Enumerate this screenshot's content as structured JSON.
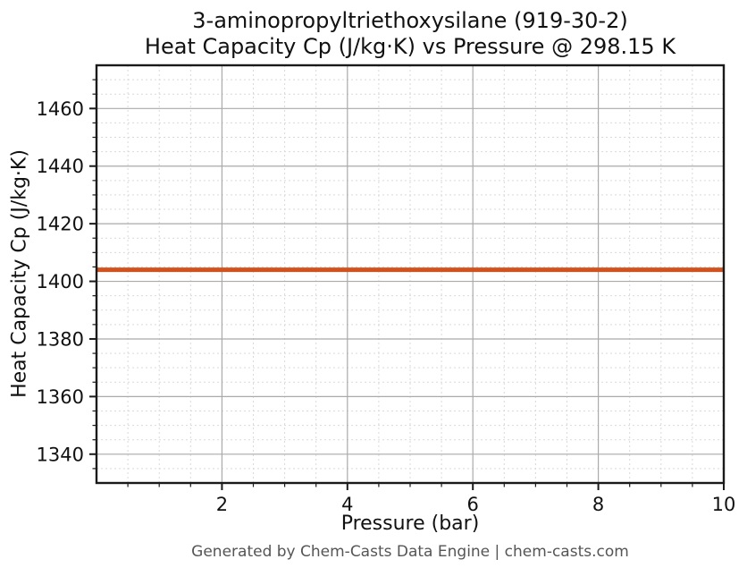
{
  "chart_data": {
    "type": "line",
    "title": "3-aminopropyltriethoxysilane (919-30-2)",
    "subtitle": "Heat Capacity Cp (J/kg·K) vs Pressure @ 298.15 K",
    "xlabel": "Pressure (bar)",
    "ylabel": "Heat Capacity Cp (J/kg·K)",
    "xlim": [
      0,
      10
    ],
    "ylim": [
      1330,
      1475
    ],
    "xticks": [
      2,
      4,
      6,
      8,
      10
    ],
    "yticks": [
      1340,
      1360,
      1380,
      1400,
      1420,
      1440,
      1460
    ],
    "x_minor_step": 0.5,
    "y_minor_step": 5,
    "grid": {
      "major": true,
      "minor": true,
      "major_color": "#aaaaaa",
      "minor_color": "#d9d9d9"
    },
    "legend": null,
    "series": [
      {
        "name": "Heat Capacity Cp",
        "color": "#d2521e",
        "x": [
          0,
          10
        ],
        "y": [
          1404,
          1404
        ]
      }
    ]
  },
  "footer": {
    "credit": "Generated by Chem-Casts Data Engine | chem-casts.com"
  },
  "colors": {
    "line": "#d2521e",
    "text": "#111111",
    "footer_text": "#555555",
    "spine": "#1a1a1a"
  }
}
